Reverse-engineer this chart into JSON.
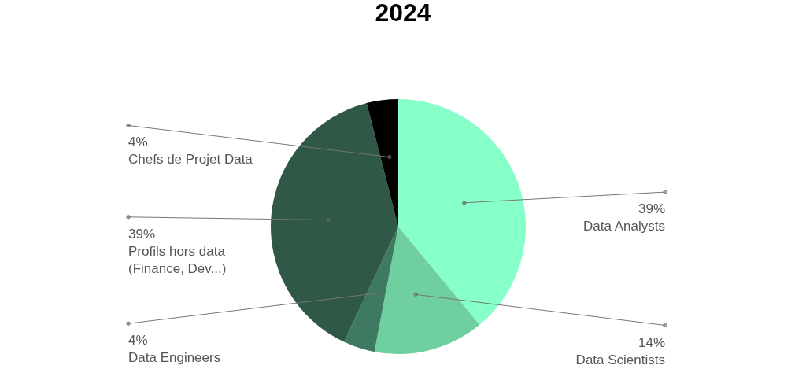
{
  "chart_data": {
    "type": "pie",
    "title": "2024",
    "categories": [
      "Data Analysts",
      "Data Scientists",
      "Data Engineers",
      "Profils hors data\n(Finance, Dev...)",
      "Chefs de Projet Data"
    ],
    "values": [
      39,
      14,
      4,
      39,
      4
    ],
    "value_labels": [
      "39%",
      "14%",
      "4%",
      "39%",
      "4%"
    ],
    "colors": [
      "#86ffc9",
      "#6fcf9f",
      "#3e7a62",
      "#2f5847",
      "#000000"
    ]
  }
}
